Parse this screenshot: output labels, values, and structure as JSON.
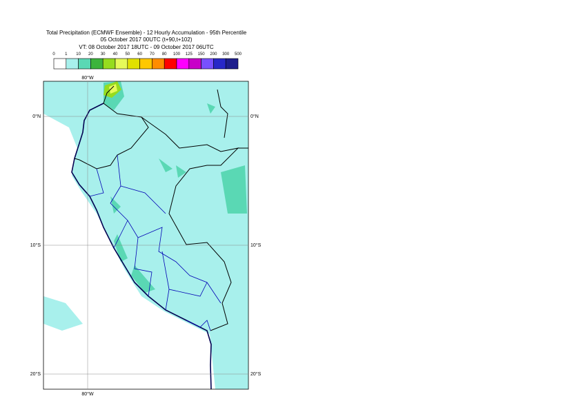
{
  "header": {
    "title": "Total Precipitation (ECMWF Ensemble) - 12 Hourly Accumulation - 95th Percentile",
    "subtitle": "05 October 2017 00UTC (t+90,t+102)",
    "valid_time": "VT: 08 October 2017 18UTC - 09 October 2017 06UTC"
  },
  "legend": {
    "labels": [
      "0",
      "1",
      "10",
      "20",
      "30",
      "40",
      "50",
      "60",
      "70",
      "80",
      "100",
      "125",
      "150",
      "200",
      "300",
      "500"
    ],
    "colors": [
      "#ffffff",
      "#a8f0ec",
      "#5ad8b4",
      "#3cb43c",
      "#96dc1e",
      "#e6fa5a",
      "#e1e100",
      "#ffc800",
      "#ff8c00",
      "#ff0000",
      "#ff00ff",
      "#c800c8",
      "#7850ff",
      "#2828c8",
      "#1e1e8c",
      "#000050"
    ]
  },
  "map": {
    "lat_labels": [
      "0°N",
      "10°S",
      "20°S"
    ],
    "lon_label": "80°W"
  }
}
